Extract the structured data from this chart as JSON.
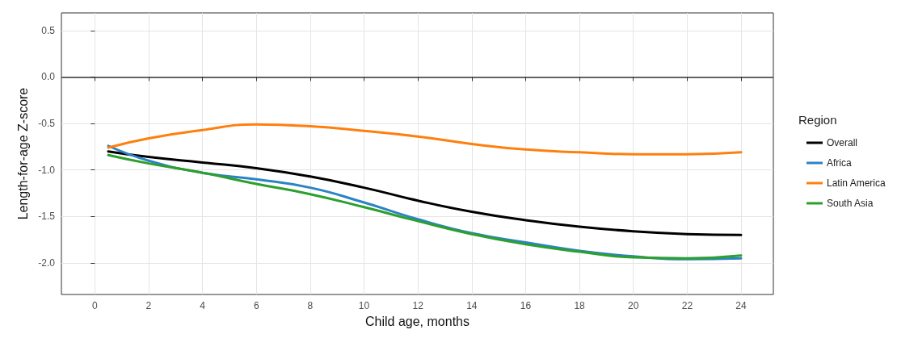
{
  "chart_data": {
    "type": "line",
    "xlabel": "Child age, months",
    "ylabel": "Length-for-age Z-score",
    "legend_title": "Region",
    "legend": "right",
    "grid": true,
    "marker": "none",
    "line_style": "solid",
    "xlim": [
      -1.24,
      25.2
    ],
    "xticks": [
      0,
      2,
      4,
      6,
      8,
      10,
      12,
      14,
      16,
      18,
      20,
      22,
      24
    ],
    "ylim": [
      -2.34,
      0.69
    ],
    "yticks": [
      {
        "value": -2,
        "label": "-2.0"
      },
      -1.5,
      {
        "value": -1,
        "label": "-1.0"
      },
      -0.5,
      {
        "value": 0,
        "label": "0.0"
      },
      0.5
    ],
    "ref_lines": [
      {
        "axis": "y",
        "value": 0,
        "color": "#333333"
      }
    ],
    "x": [
      0.5,
      2,
      4,
      6,
      8,
      10,
      12,
      14,
      16,
      18,
      20,
      22,
      24
    ],
    "series": [
      {
        "name": "Overall",
        "color": "#000000",
        "values": [
          -0.8,
          -0.86,
          -0.92,
          -0.98,
          -1.07,
          -1.19,
          -1.33,
          -1.45,
          -1.54,
          -1.61,
          -1.66,
          -1.69,
          -1.7
        ]
      },
      {
        "name": "Africa",
        "color": "#2b83c6",
        "values": [
          -0.74,
          -0.9,
          -1.03,
          -1.1,
          -1.19,
          -1.35,
          -1.53,
          -1.68,
          -1.78,
          -1.87,
          -1.93,
          -1.96,
          -1.95
        ]
      },
      {
        "name": "Latin America",
        "color": "#ff7f0e",
        "values": [
          -0.76,
          -0.66,
          -0.57,
          -0.51,
          -0.53,
          -0.58,
          -0.64,
          -0.72,
          -0.78,
          -0.81,
          -0.83,
          -0.83,
          -0.81
        ]
      },
      {
        "name": "South Asia",
        "color": "#2ca02c",
        "values": [
          -0.84,
          -0.93,
          -1.03,
          -1.15,
          -1.26,
          -1.4,
          -1.55,
          -1.69,
          -1.8,
          -1.88,
          -1.94,
          -1.95,
          -1.92
        ]
      }
    ]
  }
}
